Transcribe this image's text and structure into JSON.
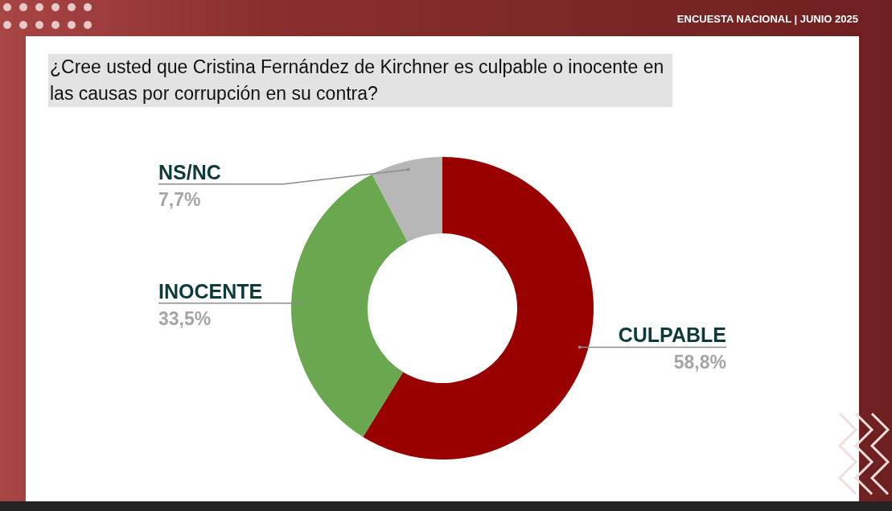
{
  "chart_data": {
    "type": "donut",
    "title": "¿Cree usted que Cristina Fernández de Kirchner es culpable o inocente en las causas por corrupción en su contra?",
    "subtitle": "ENCUESTA NACIONAL | JUNIO 2025",
    "categories": [
      "CULPABLE",
      "INOCENTE",
      "NS/NC"
    ],
    "values": [
      58.8,
      33.5,
      7.7
    ],
    "colors": [
      "#990000",
      "#6aa84f",
      "#b7b7b7"
    ],
    "value_labels": [
      "58,8%",
      "33,5%",
      "7,7%"
    ],
    "legend": false
  }
}
